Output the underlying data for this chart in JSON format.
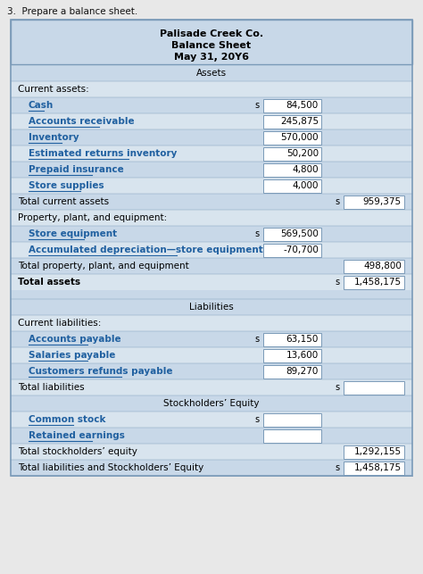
{
  "title_line1": "Palisade Creek Co.",
  "title_line2": "Balance Sheet",
  "title_line3": "May 31, 20Y6",
  "header_note": "3.  Prepare a balance sheet.",
  "bg_light": "#cddce8",
  "bg_dark": "#b8ccd e",
  "white": "#ffffff",
  "border_color": "#7a9ab5",
  "text_blue": "#2060a0",
  "rows": [
    {
      "type": "section_header",
      "text": "Assets",
      "bg": "#c8d8e8"
    },
    {
      "type": "label",
      "text": "Current assets:",
      "bg": "#d8e4ee",
      "indent": 0
    },
    {
      "type": "item",
      "label": "Cash",
      "col1_prefix": true,
      "col1": "84,500",
      "bg": "#c8d8e8",
      "blue": true
    },
    {
      "type": "item",
      "label": "Accounts receivable",
      "col1_prefix": false,
      "col1": "245,875",
      "bg": "#d8e4ee",
      "blue": true
    },
    {
      "type": "item",
      "label": "Inventory",
      "col1_prefix": false,
      "col1": "570,000",
      "bg": "#c8d8e8",
      "blue": true
    },
    {
      "type": "item",
      "label": "Estimated returns inventory",
      "col1_prefix": false,
      "col1": "50,200",
      "bg": "#d8e4ee",
      "blue": true
    },
    {
      "type": "item",
      "label": "Prepaid insurance",
      "col1_prefix": false,
      "col1": "4,800",
      "bg": "#c8d8e8",
      "blue": true
    },
    {
      "type": "item",
      "label": "Store supplies",
      "col1_prefix": false,
      "col1": "4,000",
      "bg": "#d8e4ee",
      "blue": true
    },
    {
      "type": "total",
      "label": "Total current assets",
      "col2_prefix": true,
      "col2": "959,375",
      "bg": "#c8d8e8"
    },
    {
      "type": "label",
      "text": "Property, plant, and equipment:",
      "bg": "#d8e4ee",
      "indent": 0
    },
    {
      "type": "item",
      "label": "Store equipment",
      "col1_prefix": true,
      "col1": "569,500",
      "bg": "#c8d8e8",
      "blue": true
    },
    {
      "type": "item",
      "label": "Accumulated depreciation—store equipment",
      "col1_prefix": false,
      "col1": "-70,700",
      "bg": "#d8e4ee",
      "blue": true
    },
    {
      "type": "total",
      "label": "Total property, plant, and equipment",
      "col2_prefix": false,
      "col2": "498,800",
      "bg": "#c8d8e8"
    },
    {
      "type": "total",
      "label": "Total assets",
      "col2_prefix": true,
      "col2": "1,458,175",
      "bg": "#d8e4ee",
      "bold": true
    },
    {
      "type": "spacer",
      "bg": "#c8d8e8"
    },
    {
      "type": "section_header",
      "text": "Liabilities",
      "bg": "#c8d8e8"
    },
    {
      "type": "label",
      "text": "Current liabilities:",
      "bg": "#d8e4ee",
      "indent": 0
    },
    {
      "type": "item",
      "label": "Accounts payable",
      "col1_prefix": true,
      "col1": "63,150",
      "bg": "#c8d8e8",
      "blue": true
    },
    {
      "type": "item",
      "label": "Salaries payable",
      "col1_prefix": false,
      "col1": "13,600",
      "bg": "#d8e4ee",
      "blue": true
    },
    {
      "type": "item",
      "label": "Customers refunds payable",
      "col1_prefix": false,
      "col1": "89,270",
      "bg": "#c8d8e8",
      "blue": true
    },
    {
      "type": "total",
      "label": "Total liabilities",
      "col2_prefix": true,
      "col2": "",
      "bg": "#d8e4ee"
    },
    {
      "type": "section_header",
      "text": "Stockholders’ Equity",
      "bg": "#c8d8e8"
    },
    {
      "type": "item",
      "label": "Common stock",
      "col1_prefix": true,
      "col1": "",
      "bg": "#d8e4ee",
      "blue": true
    },
    {
      "type": "item",
      "label": "Retained earnings",
      "col1_prefix": false,
      "col1": "",
      "bg": "#c8d8e8",
      "blue": true
    },
    {
      "type": "total",
      "label": "Total stockholders’ equity",
      "col2_prefix": false,
      "col2": "1,292,155",
      "bg": "#d8e4ee"
    },
    {
      "type": "total",
      "label": "Total liabilities and Stockholders’ Equity",
      "col2_prefix": true,
      "col2": "1,458,175",
      "bg": "#c8d8e8"
    }
  ]
}
